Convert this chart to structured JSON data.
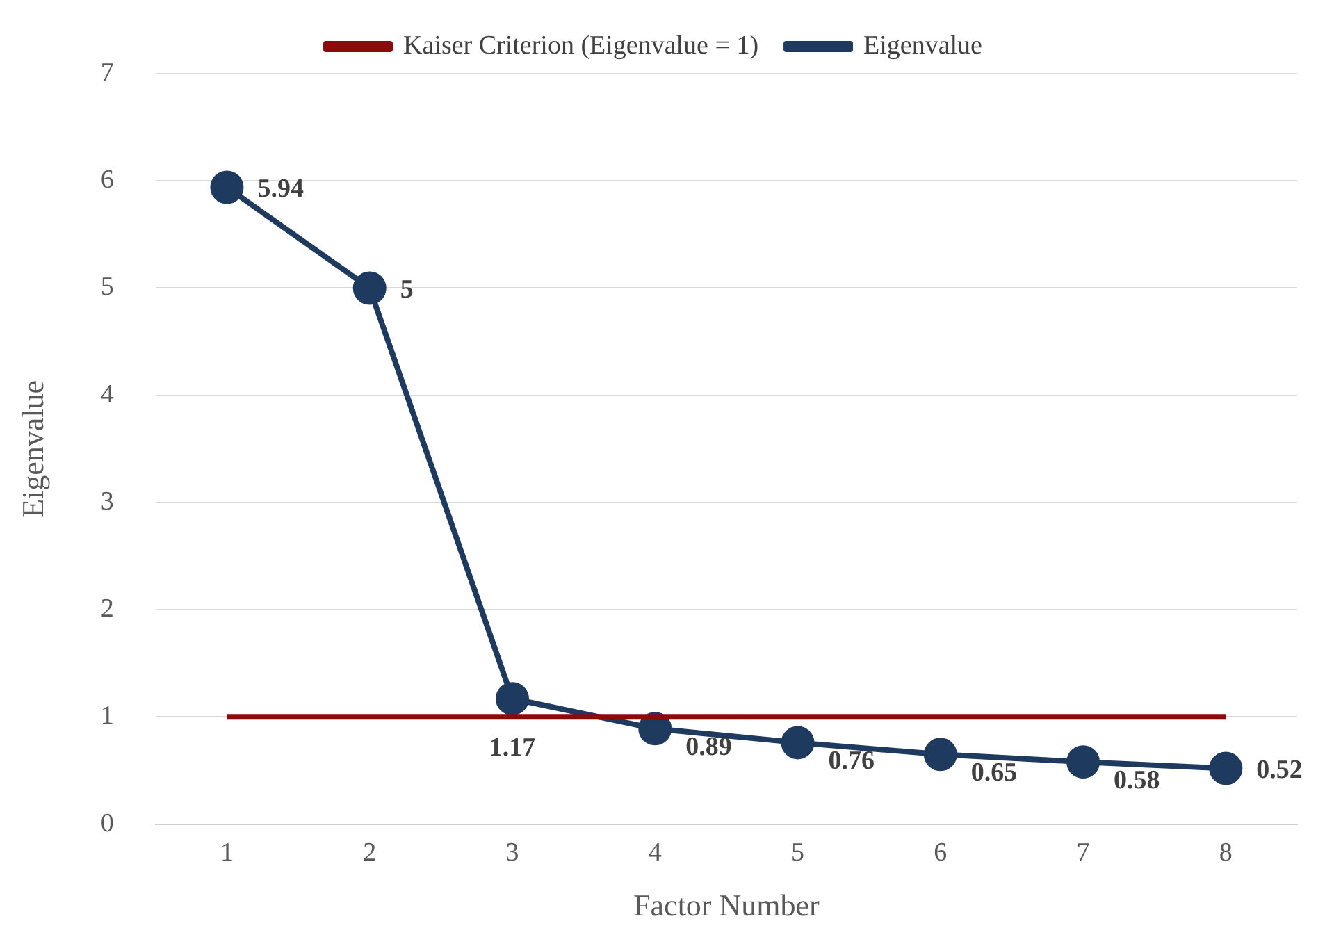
{
  "chart_data": {
    "type": "line",
    "xlabel": "Factor Number",
    "ylabel": "Eigenvalue",
    "categories": [
      "1",
      "2",
      "3",
      "4",
      "5",
      "6",
      "7",
      "8"
    ],
    "series": [
      {
        "name": "Eigenvalue",
        "color": "#1f3a5f",
        "marker": "circle",
        "values": [
          5.94,
          5,
          1.17,
          0.89,
          0.76,
          0.65,
          0.58,
          0.52
        ],
        "value_labels": [
          "5.94",
          "5",
          "1.17",
          "0.89",
          "0.76",
          "0.65",
          "0.58",
          "0.52"
        ]
      },
      {
        "name": "Kaiser Criterion (Eigenvalue = 1)",
        "color": "#8b0a0a",
        "marker": "none",
        "values": [
          1,
          1,
          1,
          1,
          1,
          1,
          1,
          1
        ]
      }
    ],
    "ylim": [
      0,
      7
    ],
    "yticks": [
      0,
      1,
      2,
      3,
      4,
      5,
      6,
      7
    ],
    "grid": "y",
    "legend": "top"
  }
}
